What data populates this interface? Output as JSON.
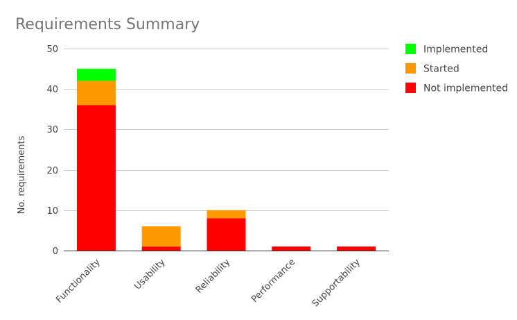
{
  "chart_data": {
    "type": "bar",
    "stacked": true,
    "title": "Requirements Summary",
    "xlabel": "",
    "ylabel": "No. requirements",
    "ylim": [
      0,
      50
    ],
    "yticks": [
      0,
      10,
      20,
      30,
      40,
      50
    ],
    "grid": true,
    "legend_position": "right",
    "categories": [
      "Functionality",
      "Usability",
      "Reliability",
      "Performance",
      "Supportability"
    ],
    "series": [
      {
        "name": "Not implemented",
        "color": "#ff0000",
        "values": [
          36,
          1,
          8,
          1,
          1
        ]
      },
      {
        "name": "Started",
        "color": "#ff9900",
        "values": [
          6,
          5,
          2,
          0,
          0
        ]
      },
      {
        "name": "Implemented",
        "color": "#00ff00",
        "values": [
          3,
          0,
          0,
          0,
          0
        ]
      }
    ],
    "legend_order": [
      "Implemented",
      "Started",
      "Not implemented"
    ]
  }
}
